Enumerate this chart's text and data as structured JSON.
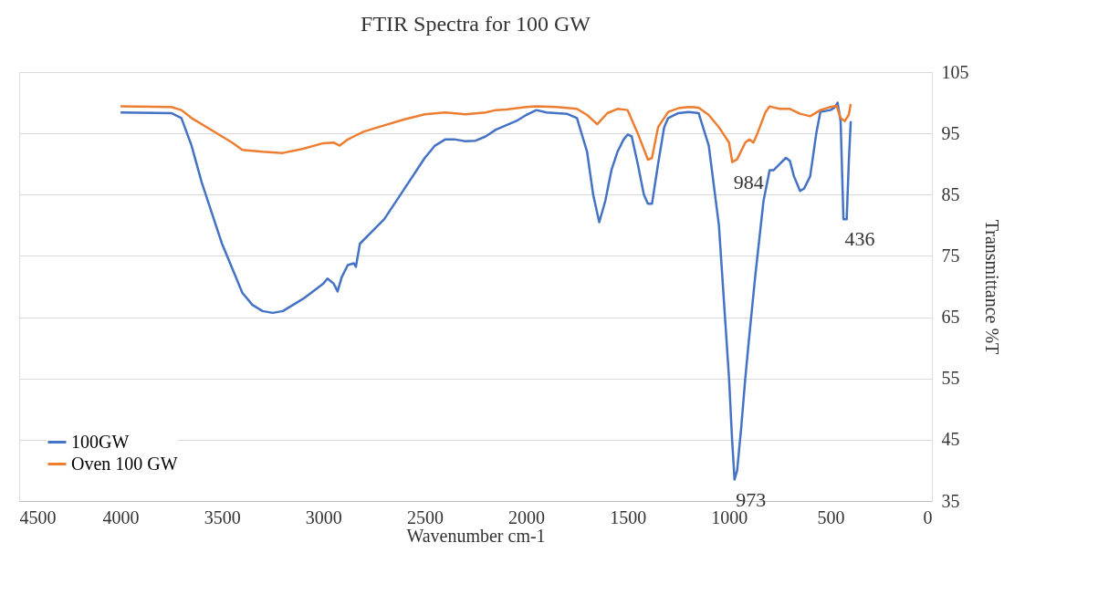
{
  "chart_data": {
    "type": "line",
    "title": "FTIR Spectra for 100 GW",
    "xlabel": "Wavenumber cm-1",
    "ylabel": "Transmittance  %T",
    "xlim": [
      4500,
      0
    ],
    "xticks": [
      4500,
      4000,
      3500,
      3000,
      2500,
      2000,
      1500,
      1000,
      500,
      0
    ],
    "ylim": [
      35,
      105
    ],
    "yticks": [
      35,
      45,
      55,
      65,
      75,
      85,
      95,
      105
    ],
    "grid": "y",
    "legend": "bottom left",
    "marker": "none",
    "line_style": "solid",
    "series": [
      {
        "name": "100GW",
        "color": "#4472c4",
        "x": [
          4000,
          3750,
          3700,
          3650,
          3600,
          3500,
          3400,
          3350,
          3300,
          3250,
          3200,
          3100,
          3000,
          2980,
          2950,
          2930,
          2910,
          2880,
          2850,
          2840,
          2820,
          2700,
          2600,
          2500,
          2450,
          2400,
          2350,
          2300,
          2250,
          2200,
          2150,
          2100,
          2050,
          2000,
          1980,
          1950,
          1900,
          1800,
          1750,
          1700,
          1670,
          1640,
          1610,
          1580,
          1550,
          1520,
          1500,
          1480,
          1450,
          1420,
          1400,
          1380,
          1350,
          1320,
          1300,
          1250,
          1200,
          1150,
          1100,
          1050,
          1020,
          1000,
          985,
          973,
          960,
          940,
          920,
          900,
          870,
          830,
          800,
          780,
          750,
          720,
          700,
          680,
          650,
          630,
          600,
          570,
          550,
          500,
          480,
          465,
          450,
          436,
          420,
          410,
          400
        ],
        "values": [
          98.4,
          98.3,
          97.5,
          93,
          87,
          77,
          69,
          67,
          66,
          65.7,
          66,
          68,
          70.5,
          71.3,
          70.5,
          69.2,
          71.5,
          73.5,
          73.8,
          73.2,
          77,
          81,
          86,
          91,
          93,
          94,
          94,
          93.7,
          93.8,
          94.5,
          95.6,
          96.3,
          97,
          98,
          98.3,
          98.8,
          98.4,
          98.2,
          97.5,
          92,
          85,
          80.5,
          84,
          89,
          92,
          94,
          94.8,
          94.5,
          90,
          85,
          83.5,
          83.5,
          90,
          96,
          97.5,
          98.3,
          98.5,
          98.3,
          93,
          80,
          65,
          55,
          45,
          38.5,
          40,
          47,
          55,
          62,
          72,
          84,
          89,
          89,
          90,
          91,
          90.5,
          88,
          85.6,
          86,
          88,
          95,
          98.5,
          98.8,
          99.2,
          100,
          97,
          81,
          81,
          90,
          97
        ]
      },
      {
        "name": "Oven 100 GW",
        "color": "#ed7d31",
        "x": [
          4000,
          3750,
          3700,
          3650,
          3550,
          3450,
          3400,
          3300,
          3200,
          3100,
          3000,
          2950,
          2920,
          2880,
          2850,
          2800,
          2700,
          2600,
          2500,
          2400,
          2300,
          2200,
          2150,
          2100,
          2000,
          1950,
          1850,
          1750,
          1700,
          1650,
          1600,
          1550,
          1500,
          1450,
          1400,
          1380,
          1350,
          1300,
          1250,
          1200,
          1150,
          1100,
          1050,
          1000,
          984,
          960,
          920,
          900,
          880,
          860,
          820,
          800,
          750,
          700,
          650,
          600,
          550,
          500,
          470,
          450,
          430,
          410,
          400
        ],
        "values": [
          99.4,
          99.3,
          98.8,
          97.5,
          95.5,
          93.5,
          92.3,
          92,
          91.8,
          92.5,
          93.4,
          93.5,
          93,
          94,
          94.5,
          95.3,
          96.3,
          97.3,
          98.1,
          98.4,
          98.1,
          98.4,
          98.8,
          98.9,
          99.3,
          99.4,
          99.3,
          99,
          98,
          96.5,
          98.3,
          99,
          98.8,
          95,
          90.7,
          91,
          96,
          98.5,
          99.1,
          99.3,
          99.2,
          98,
          96,
          93.5,
          90.3,
          90.8,
          93.5,
          94,
          93.5,
          95,
          98.5,
          99.4,
          99,
          99,
          98.2,
          97.8,
          98.8,
          99.3,
          99.5,
          97.5,
          97,
          98,
          99.8
        ]
      }
    ],
    "annotations": [
      {
        "text": "984",
        "x": 984,
        "y": 90.3
      },
      {
        "text": "973",
        "x": 973,
        "y": 38.5
      },
      {
        "text": "436",
        "x": 436,
        "y": 81
      }
    ]
  }
}
